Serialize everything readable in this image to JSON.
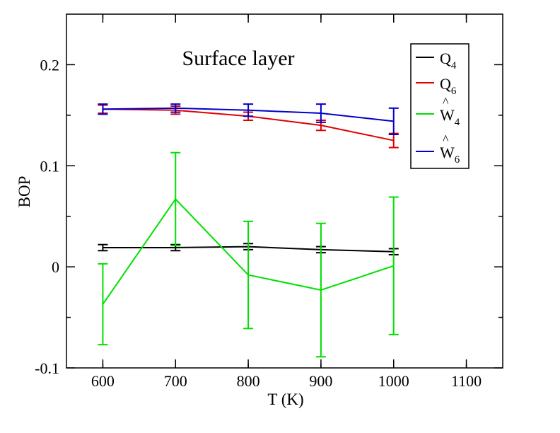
{
  "chart_data": {
    "type": "line",
    "title": "Surface layer",
    "xlabel": "T (K)",
    "ylabel": "BOP",
    "xlim": [
      550,
      1150
    ],
    "ylim": [
      -0.1,
      0.25
    ],
    "xticks": [
      600,
      700,
      800,
      900,
      1000,
      1100
    ],
    "xtick_labels": [
      "600",
      "700",
      "800",
      "900",
      "1000",
      "1100"
    ],
    "yticks": [
      -0.1,
      0,
      0.1,
      0.2
    ],
    "ytick_labels": [
      "-0.1",
      "0",
      "0.1",
      "0.2"
    ],
    "grid": false,
    "legend_position": "top-right",
    "x": [
      600,
      700,
      800,
      900,
      1000
    ],
    "series": [
      {
        "name": "Q",
        "sub": "4",
        "hat": false,
        "color": "#000000",
        "values": [
          0.019,
          0.019,
          0.02,
          0.017,
          0.015
        ],
        "err": [
          0.003,
          0.003,
          0.003,
          0.003,
          0.003
        ]
      },
      {
        "name": "Q",
        "sub": "6",
        "hat": false,
        "color": "#e00000",
        "values": [
          0.156,
          0.155,
          0.149,
          0.14,
          0.125
        ],
        "err": [
          0.004,
          0.004,
          0.004,
          0.005,
          0.007
        ]
      },
      {
        "name": "W",
        "sub": "4",
        "hat": true,
        "color": "#00e000",
        "values": [
          -0.037,
          0.067,
          -0.008,
          -0.023,
          0.001
        ],
        "err": [
          0.04,
          0.046,
          0.053,
          0.066,
          0.068
        ]
      },
      {
        "name": "W",
        "sub": "6",
        "hat": true,
        "color": "#0000c8",
        "values": [
          0.156,
          0.157,
          0.155,
          0.152,
          0.144
        ],
        "err": [
          0.005,
          0.004,
          0.006,
          0.009,
          0.013
        ]
      }
    ]
  }
}
